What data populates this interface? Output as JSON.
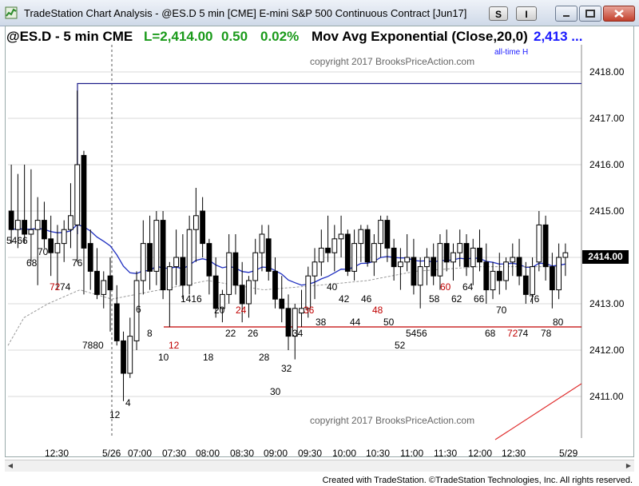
{
  "window": {
    "title": "TradeStation Chart Analysis - @ES.D 5 min [CME] E-mini S&P 500 Continuous Contract [Jun17]",
    "btn_s": "S",
    "btn_i": "I"
  },
  "header": {
    "symbol": "@ES.D - 5 min  CME",
    "last": "L=2,414.00",
    "change": "0.50",
    "pct": "0.02%",
    "study": "Mov Avg Exponential (Close,20,0)",
    "study_value": "2,413 ..."
  },
  "copyright_text": "copyright 2017 BrooksPriceAction.com",
  "all_time_high_label": "all-time H",
  "current_price": "2414.00",
  "y_axis_labels": [
    "2418.00",
    "2417.00",
    "2416.00",
    "2415.00",
    "2413.00",
    "2412.00",
    "2411.00"
  ],
  "x_axis_labels": [
    "12:30",
    "5/26",
    "07:00",
    "07:30",
    "08:00",
    "08:30",
    "09:00",
    "09:30",
    "10:00",
    "10:30",
    "11:00",
    "11:30",
    "12:00",
    "12:30",
    "5/29"
  ],
  "bar_labels": [
    {
      "t": "5466",
      "red": false
    },
    {
      "t": "68",
      "red": false
    },
    {
      "t": "70",
      "red": false
    },
    {
      "t": "76",
      "red": false
    },
    {
      "t": "72",
      "red": true
    },
    {
      "t": "74",
      "red": false
    },
    {
      "t": "7880",
      "red": false
    },
    {
      "t": "12",
      "red": false
    },
    {
      "t": "4",
      "red": false
    },
    {
      "t": "6",
      "red": false
    },
    {
      "t": "8",
      "red": false
    },
    {
      "t": "10",
      "red": false
    },
    {
      "t": "12",
      "red": true
    },
    {
      "t": "1416",
      "red": false
    },
    {
      "t": "18",
      "red": false
    },
    {
      "t": "20",
      "red": false
    },
    {
      "t": "22",
      "red": false
    },
    {
      "t": "24",
      "red": true
    },
    {
      "t": "26",
      "red": false
    },
    {
      "t": "28",
      "red": false
    },
    {
      "t": "30",
      "red": false
    },
    {
      "t": "32",
      "red": false
    },
    {
      "t": "34",
      "red": false
    },
    {
      "t": "36",
      "red": true
    },
    {
      "t": "38",
      "red": false
    },
    {
      "t": "40",
      "red": false
    },
    {
      "t": "42",
      "red": false
    },
    {
      "t": "44",
      "red": false
    },
    {
      "t": "46",
      "red": false
    },
    {
      "t": "48",
      "red": true
    },
    {
      "t": "50",
      "red": false
    },
    {
      "t": "52",
      "red": false
    },
    {
      "t": "5456",
      "red": false
    },
    {
      "t": "58",
      "red": false
    },
    {
      "t": "60",
      "red": true
    },
    {
      "t": "62",
      "red": false
    },
    {
      "t": "64",
      "red": false
    },
    {
      "t": "66",
      "red": false
    },
    {
      "t": "68",
      "red": false
    },
    {
      "t": "70",
      "red": false
    },
    {
      "t": "72",
      "red": true
    },
    {
      "t": "74",
      "red": false
    },
    {
      "t": "76",
      "red": false
    },
    {
      "t": "78",
      "red": false
    },
    {
      "t": "80",
      "red": false
    }
  ],
  "footer": "Created with TradeStation. ©TradeStation Technologies, Inc. All rights reserved.",
  "chart_data": {
    "type": "candlestick",
    "ylim": [
      2410.6,
      2418.5
    ],
    "ohlc": [
      [
        2415.0,
        2416.0,
        2414.3,
        2414.6
      ],
      [
        2414.6,
        2415.8,
        2414.2,
        2414.8
      ],
      [
        2414.8,
        2416.0,
        2414.3,
        2414.5
      ],
      [
        2414.5,
        2415.9,
        2413.9,
        2414.6
      ],
      [
        2414.6,
        2415.3,
        2413.4,
        2414.8
      ],
      [
        2414.8,
        2415.2,
        2414.2,
        2414.4
      ],
      [
        2414.4,
        2414.9,
        2413.6,
        2414.1
      ],
      [
        2414.1,
        2414.7,
        2413.3,
        2414.3
      ],
      [
        2414.3,
        2414.8,
        2413.9,
        2414.6
      ],
      [
        2414.6,
        2415.6,
        2414.2,
        2414.9
      ],
      [
        2414.7,
        2417.6,
        2413.9,
        2416.0
      ],
      [
        2416.2,
        2416.3,
        2413.2,
        2414.2
      ],
      [
        2414.3,
        2414.6,
        2413.3,
        2413.7
      ],
      [
        2413.7,
        2414.2,
        2413.1,
        2413.2
      ],
      [
        2413.2,
        2413.7,
        2412.9,
        2413.5
      ],
      [
        2413.6,
        2414.0,
        2412.4,
        2413.3
      ],
      [
        2413.0,
        2413.4,
        2412.1,
        2412.2
      ],
      [
        2412.2,
        2412.4,
        2410.9,
        2411.5
      ],
      [
        2411.5,
        2412.7,
        2411.4,
        2412.3
      ],
      [
        2412.2,
        2413.7,
        2412.0,
        2413.5
      ],
      [
        2413.5,
        2414.8,
        2413.2,
        2414.3
      ],
      [
        2414.3,
        2414.9,
        2413.3,
        2413.7
      ],
      [
        2413.7,
        2415.0,
        2413.4,
        2414.8
      ],
      [
        2414.8,
        2415.0,
        2413.1,
        2413.3
      ],
      [
        2413.3,
        2413.9,
        2412.5,
        2413.8
      ],
      [
        2413.8,
        2414.6,
        2413.4,
        2414.0
      ],
      [
        2414.0,
        2414.5,
        2413.1,
        2413.4
      ],
      [
        2413.4,
        2414.9,
        2413.2,
        2414.6
      ],
      [
        2414.6,
        2415.5,
        2413.9,
        2414.9
      ],
      [
        2415.0,
        2415.3,
        2414.0,
        2414.3
      ],
      [
        2414.3,
        2414.4,
        2413.2,
        2413.6
      ],
      [
        2413.6,
        2414.0,
        2412.7,
        2412.9
      ],
      [
        2412.9,
        2413.3,
        2412.6,
        2413.2
      ],
      [
        2413.2,
        2414.5,
        2413.0,
        2414.1
      ],
      [
        2414.1,
        2414.5,
        2413.2,
        2413.4
      ],
      [
        2413.4,
        2413.9,
        2412.6,
        2413.0
      ],
      [
        2413.0,
        2413.6,
        2412.7,
        2413.5
      ],
      [
        2413.5,
        2414.4,
        2413.2,
        2414.1
      ],
      [
        2414.1,
        2414.7,
        2413.7,
        2414.5
      ],
      [
        2414.4,
        2414.7,
        2413.5,
        2413.7
      ],
      [
        2413.7,
        2414.0,
        2412.9,
        2413.1
      ],
      [
        2413.1,
        2413.6,
        2412.6,
        2412.9
      ],
      [
        2412.9,
        2413.2,
        2412.0,
        2412.3
      ],
      [
        2412.3,
        2413.0,
        2411.8,
        2412.9
      ],
      [
        2412.8,
        2413.3,
        2412.5,
        2412.9
      ],
      [
        2412.9,
        2413.8,
        2412.7,
        2413.6
      ],
      [
        2413.6,
        2414.2,
        2413.1,
        2413.9
      ],
      [
        2413.9,
        2414.6,
        2413.6,
        2414.2
      ],
      [
        2414.2,
        2414.9,
        2413.9,
        2414.1
      ],
      [
        2414.1,
        2414.7,
        2413.7,
        2414.4
      ],
      [
        2414.4,
        2414.9,
        2414.0,
        2414.5
      ],
      [
        2414.5,
        2414.6,
        2413.6,
        2413.7
      ],
      [
        2413.7,
        2414.6,
        2413.5,
        2414.3
      ],
      [
        2414.3,
        2414.7,
        2413.9,
        2414.6
      ],
      [
        2414.6,
        2414.7,
        2413.8,
        2413.9
      ],
      [
        2413.9,
        2414.5,
        2413.6,
        2414.3
      ],
      [
        2414.3,
        2414.9,
        2414.0,
        2414.8
      ],
      [
        2414.8,
        2414.9,
        2413.9,
        2414.2
      ],
      [
        2414.2,
        2414.4,
        2413.5,
        2413.8
      ],
      [
        2413.8,
        2414.2,
        2413.3,
        2413.9
      ],
      [
        2413.9,
        2414.5,
        2413.7,
        2414.0
      ],
      [
        2414.0,
        2414.4,
        2413.2,
        2413.4
      ],
      [
        2413.4,
        2414.0,
        2412.9,
        2413.8
      ],
      [
        2413.8,
        2414.2,
        2413.4,
        2414.0
      ],
      [
        2414.0,
        2414.3,
        2413.4,
        2413.6
      ],
      [
        2413.6,
        2414.5,
        2413.3,
        2414.3
      ],
      [
        2414.3,
        2414.6,
        2413.7,
        2413.9
      ],
      [
        2413.9,
        2414.3,
        2413.5,
        2414.1
      ],
      [
        2414.1,
        2414.6,
        2413.8,
        2414.3
      ],
      [
        2414.3,
        2414.5,
        2413.6,
        2413.8
      ],
      [
        2413.8,
        2414.4,
        2413.4,
        2414.2
      ],
      [
        2414.2,
        2414.6,
        2413.7,
        2413.9
      ],
      [
        2413.9,
        2414.3,
        2413.0,
        2413.3
      ],
      [
        2413.3,
        2413.9,
        2413.1,
        2413.7
      ],
      [
        2413.7,
        2414.1,
        2413.2,
        2413.5
      ],
      [
        2413.5,
        2414.0,
        2413.3,
        2413.9
      ],
      [
        2413.9,
        2414.3,
        2413.6,
        2414.0
      ],
      [
        2414.0,
        2414.4,
        2413.4,
        2413.6
      ],
      [
        2413.6,
        2413.9,
        2413.0,
        2413.2
      ],
      [
        2413.2,
        2414.0,
        2413.0,
        2413.8
      ],
      [
        2413.9,
        2415.0,
        2413.7,
        2414.7
      ],
      [
        2414.7,
        2414.9,
        2413.5,
        2413.8
      ],
      [
        2413.8,
        2414.1,
        2412.9,
        2413.3
      ],
      [
        2413.3,
        2414.3,
        2413.1,
        2414.0
      ],
      [
        2414.0,
        2414.3,
        2413.6,
        2414.1
      ]
    ],
    "ema_line_color": "#1f2fc0",
    "prior_line_color": "#999999",
    "all_time_high": 2417.75,
    "support_level": 2412.5,
    "support_color": "#c00000",
    "trend_line_color": "#e03030"
  }
}
